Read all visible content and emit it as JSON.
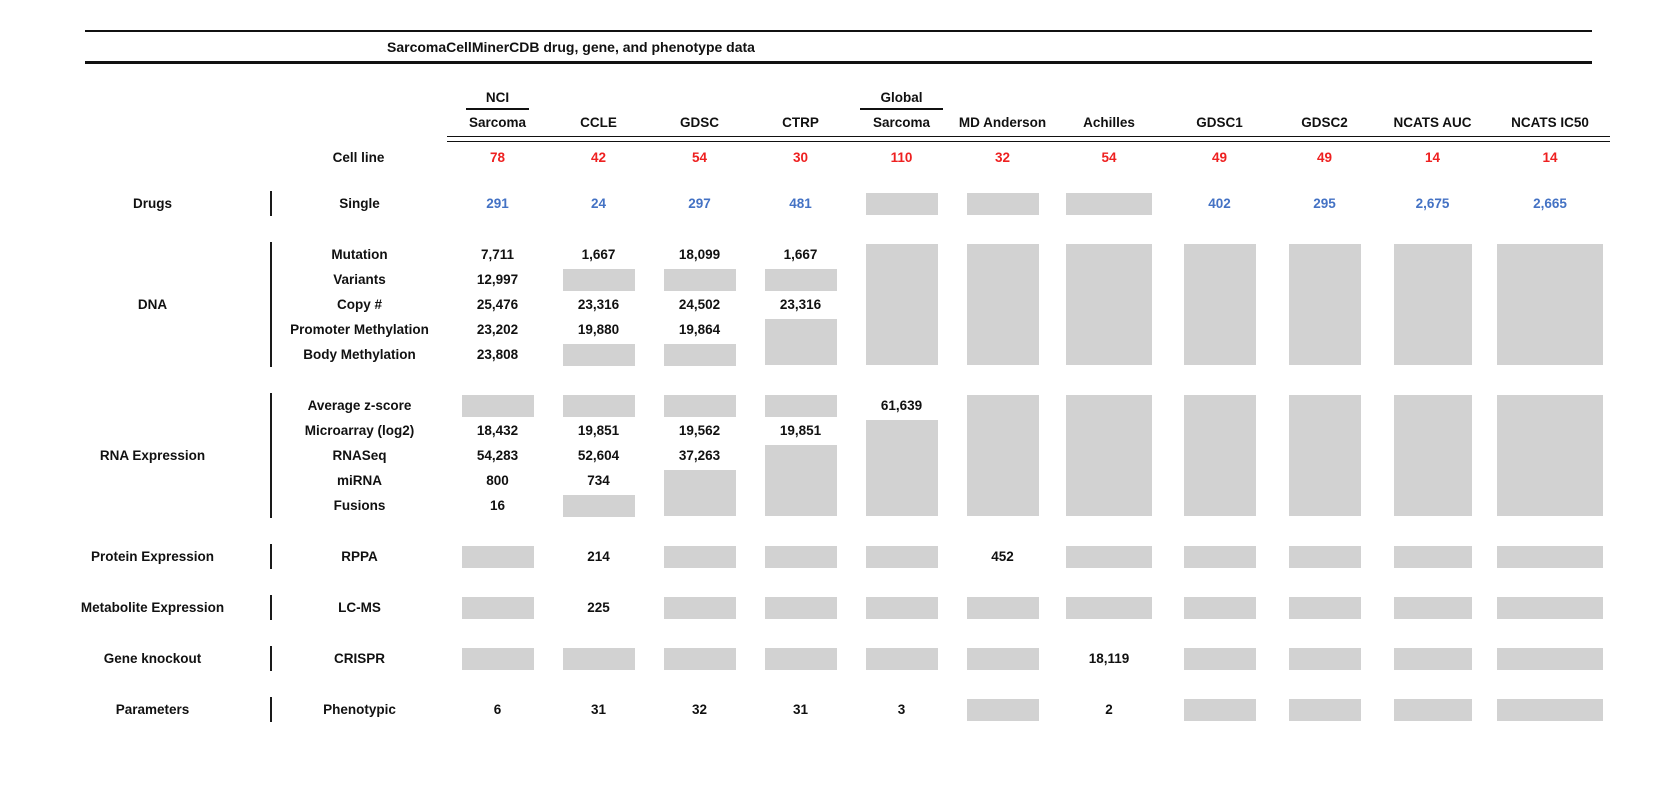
{
  "title": "SarcomaCellMinerCDB drug, gene, and phenotype data",
  "colors": {
    "count_red": "#ee2020",
    "drug_blue": "#4472c4",
    "missing_box_gray": "#d2d2d2",
    "rule_black": "#111111"
  },
  "matrix": {
    "cell_line_label": "Cell line",
    "columns": [
      {
        "top": "NCI",
        "label": "Sarcoma",
        "cell_lines": "78"
      },
      {
        "label": "CCLE",
        "cell_lines": "42"
      },
      {
        "label": "GDSC",
        "cell_lines": "54"
      },
      {
        "label": "CTRP",
        "cell_lines": "30"
      },
      {
        "top": "Global",
        "label": "Sarcoma",
        "cell_lines": "110"
      },
      {
        "label": "MD Anderson",
        "cell_lines": "32"
      },
      {
        "label": "Achilles",
        "cell_lines": "54"
      },
      {
        "label": "GDSC1",
        "cell_lines": "49"
      },
      {
        "label": "GDSC2",
        "cell_lines": "49"
      },
      {
        "label": "NCATS AUC",
        "cell_lines": "14"
      },
      {
        "label": "NCATS IC50",
        "cell_lines": "14"
      }
    ],
    "groups": [
      {
        "category": "Drugs",
        "value_color": "blue",
        "rows": [
          {
            "label": "Single",
            "cells": [
              {
                "v": "291"
              },
              {
                "v": "24"
              },
              {
                "v": "297"
              },
              {
                "v": "481"
              },
              {
                "b": 1
              },
              {
                "b": 1
              },
              {
                "b": 1
              },
              {
                "v": "402"
              },
              {
                "v": "295"
              },
              {
                "v": "2,675"
              },
              {
                "v": "2,665"
              }
            ]
          }
        ]
      },
      {
        "category": "DNA",
        "rows": [
          {
            "label": "Mutation",
            "cells": [
              {
                "v": "7,711"
              },
              {
                "v": "1,667"
              },
              {
                "v": "18,099"
              },
              {
                "v": "1,667"
              },
              {
                "b": 5
              },
              {
                "b": 5
              },
              {
                "b": 5
              },
              {
                "b": 5
              },
              {
                "b": 5
              },
              {
                "b": 5
              },
              {
                "b": 5
              }
            ]
          },
          {
            "label": "Variants",
            "cells": [
              {
                "v": "12,997"
              },
              {
                "b": 1
              },
              {
                "b": 1
              },
              {
                "b": 1
              },
              null,
              null,
              null,
              null,
              null,
              null,
              null
            ]
          },
          {
            "label": "Copy #",
            "cells": [
              {
                "v": "25,476"
              },
              {
                "v": "23,316"
              },
              {
                "v": "24,502"
              },
              {
                "v": "23,316"
              },
              null,
              null,
              null,
              null,
              null,
              null,
              null
            ]
          },
          {
            "label": "Promoter Methylation",
            "cells": [
              {
                "v": "23,202"
              },
              {
                "v": "19,880"
              },
              {
                "v": "19,864"
              },
              {
                "b": 2
              },
              null,
              null,
              null,
              null,
              null,
              null,
              null
            ]
          },
          {
            "label": "Body Methylation",
            "cells": [
              {
                "v": "23,808"
              },
              {
                "b": 1
              },
              {
                "b": 1
              },
              null,
              null,
              null,
              null,
              null,
              null,
              null,
              null
            ]
          }
        ]
      },
      {
        "category": "RNA Expression",
        "rows": [
          {
            "label": "Average z-score",
            "cells": [
              {
                "b": 1
              },
              {
                "b": 1
              },
              {
                "b": 1
              },
              {
                "b": 1
              },
              {
                "v": "61,639"
              },
              {
                "b": 5
              },
              {
                "b": 5
              },
              {
                "b": 5
              },
              {
                "b": 5
              },
              {
                "b": 5
              },
              {
                "b": 5
              }
            ]
          },
          {
            "label": "Microarray (log2)",
            "cells": [
              {
                "v": "18,432"
              },
              {
                "v": "19,851"
              },
              {
                "v": "19,562"
              },
              {
                "v": "19,851"
              },
              {
                "b": 4
              },
              null,
              null,
              null,
              null,
              null,
              null
            ]
          },
          {
            "label": "RNASeq",
            "cells": [
              {
                "v": "54,283"
              },
              {
                "v": "52,604"
              },
              {
                "v": "37,263"
              },
              {
                "b": 3
              },
              null,
              null,
              null,
              null,
              null,
              null,
              null
            ]
          },
          {
            "label": "miRNA",
            "cells": [
              {
                "v": "800"
              },
              {
                "v": "734"
              },
              {
                "b": 2
              },
              null,
              null,
              null,
              null,
              null,
              null,
              null,
              null
            ]
          },
          {
            "label": "Fusions",
            "cells": [
              {
                "v": "16"
              },
              {
                "b": 1
              },
              null,
              null,
              null,
              null,
              null,
              null,
              null,
              null,
              null
            ]
          }
        ]
      },
      {
        "category": "Protein Expression",
        "rows": [
          {
            "label": "RPPA",
            "cells": [
              {
                "b": 1
              },
              {
                "v": "214"
              },
              {
                "b": 1
              },
              {
                "b": 1
              },
              {
                "b": 1
              },
              {
                "v": "452"
              },
              {
                "b": 1
              },
              {
                "b": 1
              },
              {
                "b": 1
              },
              {
                "b": 1
              },
              {
                "b": 1
              }
            ]
          }
        ]
      },
      {
        "category": "Metabolite Expression",
        "rows": [
          {
            "label": "LC-MS",
            "cells": [
              {
                "b": 1
              },
              {
                "v": "225"
              },
              {
                "b": 1
              },
              {
                "b": 1
              },
              {
                "b": 1
              },
              {
                "b": 1
              },
              {
                "b": 1
              },
              {
                "b": 1
              },
              {
                "b": 1
              },
              {
                "b": 1
              },
              {
                "b": 1
              }
            ]
          }
        ]
      },
      {
        "category": "Gene knockout",
        "rows": [
          {
            "label": "CRISPR",
            "cells": [
              {
                "b": 1
              },
              {
                "b": 1
              },
              {
                "b": 1
              },
              {
                "b": 1
              },
              {
                "b": 1
              },
              {
                "b": 1
              },
              {
                "v": "18,119"
              },
              {
                "b": 1
              },
              {
                "b": 1
              },
              {
                "b": 1
              },
              {
                "b": 1
              }
            ]
          }
        ]
      },
      {
        "category": "Parameters",
        "rows": [
          {
            "label": "Phenotypic",
            "cells": [
              {
                "v": "6"
              },
              {
                "v": "31"
              },
              {
                "v": "32"
              },
              {
                "v": "31"
              },
              {
                "v": "3"
              },
              {
                "b": 1
              },
              {
                "v": "2"
              },
              {
                "b": 1
              },
              {
                "b": 1
              },
              {
                "b": 1
              },
              {
                "b": 1
              }
            ]
          }
        ]
      }
    ]
  },
  "chart_data": {
    "type": "table",
    "title": "SarcomaCellMinerCDB drug, gene, and phenotype data",
    "columns": [
      "NCI Sarcoma",
      "CCLE",
      "GDSC",
      "CTRP",
      "Global Sarcoma",
      "MD Anderson",
      "Achilles",
      "GDSC1",
      "GDSC2",
      "NCATS AUC",
      "NCATS IC50"
    ],
    "note_nulls": "null = gray box (no data) in figure",
    "rows": [
      {
        "category": "",
        "label": "Cell line",
        "values": [
          78,
          42,
          54,
          30,
          110,
          32,
          54,
          49,
          49,
          14,
          14
        ]
      },
      {
        "category": "Drugs",
        "label": "Single",
        "values": [
          291,
          24,
          297,
          481,
          null,
          null,
          null,
          402,
          295,
          2675,
          2665
        ]
      },
      {
        "category": "DNA",
        "label": "Mutation",
        "values": [
          7711,
          1667,
          18099,
          1667,
          null,
          null,
          null,
          null,
          null,
          null,
          null
        ]
      },
      {
        "category": "DNA",
        "label": "Variants",
        "values": [
          12997,
          null,
          null,
          null,
          null,
          null,
          null,
          null,
          null,
          null,
          null
        ]
      },
      {
        "category": "DNA",
        "label": "Copy #",
        "values": [
          25476,
          23316,
          24502,
          23316,
          null,
          null,
          null,
          null,
          null,
          null,
          null
        ]
      },
      {
        "category": "DNA",
        "label": "Promoter Methylation",
        "values": [
          23202,
          19880,
          19864,
          null,
          null,
          null,
          null,
          null,
          null,
          null,
          null
        ]
      },
      {
        "category": "DNA",
        "label": "Body Methylation",
        "values": [
          23808,
          null,
          null,
          null,
          null,
          null,
          null,
          null,
          null,
          null,
          null
        ]
      },
      {
        "category": "RNA Expression",
        "label": "Average z-score",
        "values": [
          null,
          null,
          null,
          null,
          61639,
          null,
          null,
          null,
          null,
          null,
          null
        ]
      },
      {
        "category": "RNA Expression",
        "label": "Microarray (log2)",
        "values": [
          18432,
          19851,
          19562,
          19851,
          null,
          null,
          null,
          null,
          null,
          null,
          null
        ]
      },
      {
        "category": "RNA Expression",
        "label": "RNASeq",
        "values": [
          54283,
          52604,
          37263,
          null,
          null,
          null,
          null,
          null,
          null,
          null,
          null
        ]
      },
      {
        "category": "RNA Expression",
        "label": "miRNA",
        "values": [
          800,
          734,
          null,
          null,
          null,
          null,
          null,
          null,
          null,
          null,
          null
        ]
      },
      {
        "category": "RNA Expression",
        "label": "Fusions",
        "values": [
          16,
          null,
          null,
          null,
          null,
          null,
          null,
          null,
          null,
          null,
          null
        ]
      },
      {
        "category": "Protein Expression",
        "label": "RPPA",
        "values": [
          null,
          214,
          null,
          null,
          null,
          452,
          null,
          null,
          null,
          null,
          null
        ]
      },
      {
        "category": "Metabolite Expression",
        "label": "LC-MS",
        "values": [
          null,
          225,
          null,
          null,
          null,
          null,
          null,
          null,
          null,
          null,
          null
        ]
      },
      {
        "category": "Gene knockout",
        "label": "CRISPR",
        "values": [
          null,
          null,
          null,
          null,
          null,
          null,
          18119,
          null,
          null,
          null,
          null
        ]
      },
      {
        "category": "Parameters",
        "label": "Phenotypic",
        "values": [
          6,
          31,
          32,
          31,
          3,
          null,
          2,
          null,
          null,
          null,
          null
        ]
      }
    ]
  }
}
